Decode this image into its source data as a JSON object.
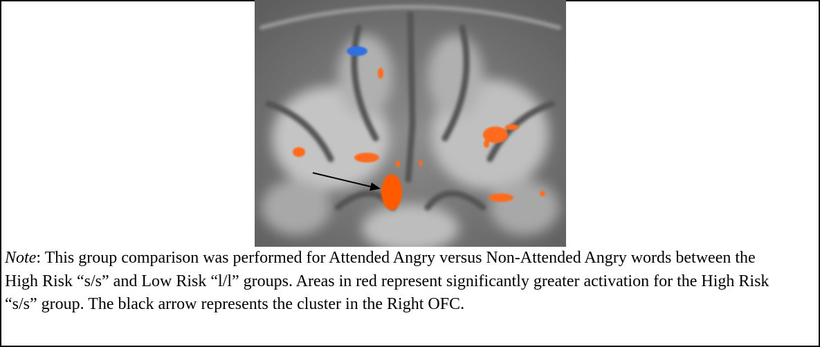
{
  "figure": {
    "caption": {
      "label": "Note",
      "text": ": This group comparison was performed for Attended Angry versus Non-Attended Angry words between the High Risk “s/s” and Low Risk “l/l” groups. Areas in red represent significantly greater activation for the High Risk “s/s” group. The black arrow represents the cluster in the Right OFC."
    }
  }
}
